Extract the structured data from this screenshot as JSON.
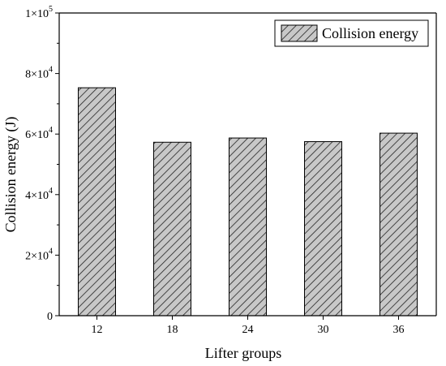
{
  "chart_data": {
    "type": "bar",
    "categories": [
      "12",
      "18",
      "24",
      "30",
      "36"
    ],
    "series": [
      {
        "name": "Collision energy",
        "values": [
          75300,
          57300,
          58700,
          57500,
          60300
        ]
      }
    ],
    "xlabel": "Lifter groups",
    "ylabel": "Collision energy (J)",
    "ylim": [
      0,
      100000
    ],
    "yticks": [
      {
        "value": 0,
        "label": "0",
        "mantissa": "",
        "exp": ""
      },
      {
        "value": 20000,
        "label": "",
        "mantissa": "2×10",
        "exp": "4"
      },
      {
        "value": 40000,
        "label": "",
        "mantissa": "4×10",
        "exp": "4"
      },
      {
        "value": 60000,
        "label": "",
        "mantissa": "6×10",
        "exp": "4"
      },
      {
        "value": 80000,
        "label": "",
        "mantissa": "8×10",
        "exp": "4"
      },
      {
        "value": 100000,
        "label": "",
        "mantissa": "1×10",
        "exp": "5"
      }
    ],
    "grid": false,
    "legend_position": "top-right",
    "bar_fill": "#c8c8c8",
    "bar_hatch": "diagonal"
  }
}
